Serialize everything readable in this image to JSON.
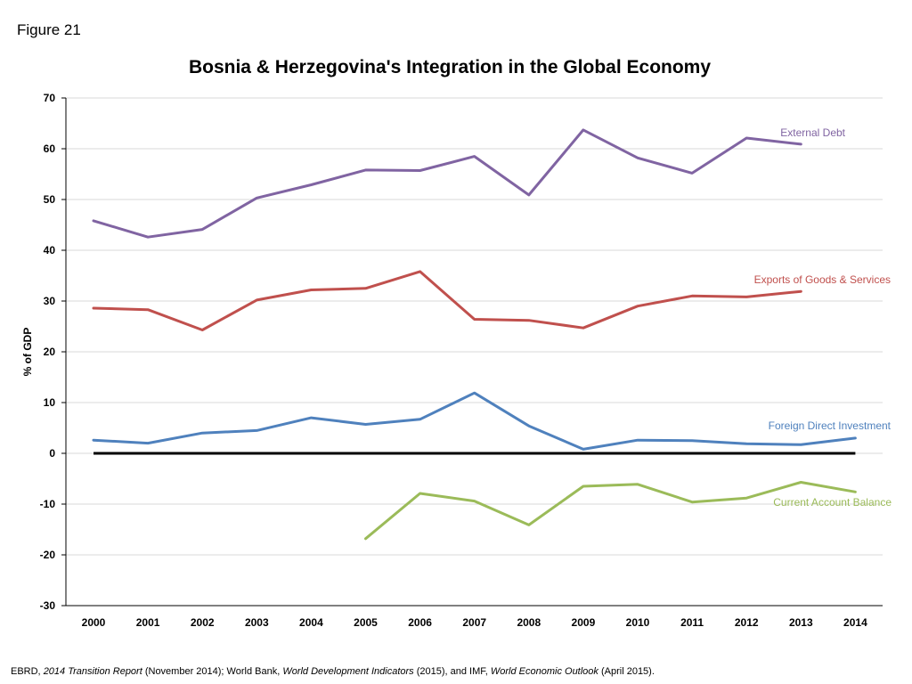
{
  "figure_label": "Figure 21",
  "source": {
    "parts": [
      {
        "text": "EBRD, ",
        "italic": false
      },
      {
        "text": "2014 Transition Report",
        "italic": true
      },
      {
        "text": " (November 2014); World Bank, ",
        "italic": false
      },
      {
        "text": "World Development Indicators",
        "italic": true
      },
      {
        "text": " (2015), and IMF, ",
        "italic": false
      },
      {
        "text": "World Economic Outlook",
        "italic": true
      },
      {
        "text": " (April 2015).",
        "italic": false
      }
    ]
  },
  "chart_data": {
    "type": "line",
    "title": "Bosnia & Herzegovina's Integration in the Global Economy",
    "xlabel": "",
    "ylabel": "% of GDP",
    "categories": [
      "2000",
      "2001",
      "2002",
      "2003",
      "2004",
      "2005",
      "2006",
      "2007",
      "2008",
      "2009",
      "2010",
      "2011",
      "2012",
      "2013",
      "2014"
    ],
    "ylim": [
      -30,
      70
    ],
    "yticks": [
      -30,
      -20,
      -10,
      0,
      10,
      20,
      30,
      40,
      50,
      60,
      70
    ],
    "grid": true,
    "zero_line": true,
    "series": [
      {
        "name": "External Debt",
        "color": "#8064A2",
        "values": [
          45.8,
          42.6,
          44.1,
          50.3,
          52.9,
          55.8,
          55.7,
          58.5,
          50.9,
          63.7,
          58.2,
          55.2,
          62.1,
          60.9,
          null
        ]
      },
      {
        "name": "Exports of Goods & Services",
        "color": "#C0504D",
        "values": [
          28.6,
          28.3,
          24.3,
          30.2,
          32.2,
          32.5,
          35.8,
          26.4,
          26.2,
          24.7,
          29.0,
          31.0,
          30.8,
          31.9,
          null
        ]
      },
      {
        "name": "Foreign Direct Investment",
        "color": "#4F81BD",
        "values": [
          2.6,
          2.0,
          4.0,
          4.5,
          7.0,
          5.7,
          6.7,
          11.9,
          5.4,
          0.8,
          2.6,
          2.5,
          1.9,
          1.7,
          3.0
        ]
      },
      {
        "name": "Current Account Balance",
        "color": "#9BBB59",
        "values": [
          null,
          null,
          null,
          null,
          null,
          -16.8,
          -7.9,
          -9.4,
          -14.1,
          -6.5,
          -6.1,
          -9.6,
          -8.8,
          -5.7,
          -7.6
        ]
      }
    ]
  }
}
